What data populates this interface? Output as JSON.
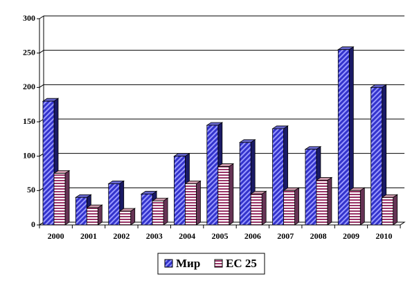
{
  "chart_data": {
    "type": "bar",
    "categories": [
      "2000",
      "2001",
      "2002",
      "2003",
      "2004",
      "2005",
      "2006",
      "2007",
      "2008",
      "2009",
      "2010"
    ],
    "series": [
      {
        "name": "Мир",
        "color": "#3333cc",
        "values": [
          180,
          40,
          60,
          45,
          100,
          145,
          120,
          140,
          110,
          255,
          200
        ]
      },
      {
        "name": "ЕС 25",
        "color": "#993366",
        "values": [
          75,
          25,
          20,
          35,
          60,
          85,
          45,
          50,
          65,
          50,
          40
        ]
      }
    ],
    "ylim": [
      0,
      300
    ],
    "yticks": [
      0,
      50,
      100,
      150,
      200,
      250,
      300
    ],
    "grid": true,
    "legend": "bottom"
  }
}
